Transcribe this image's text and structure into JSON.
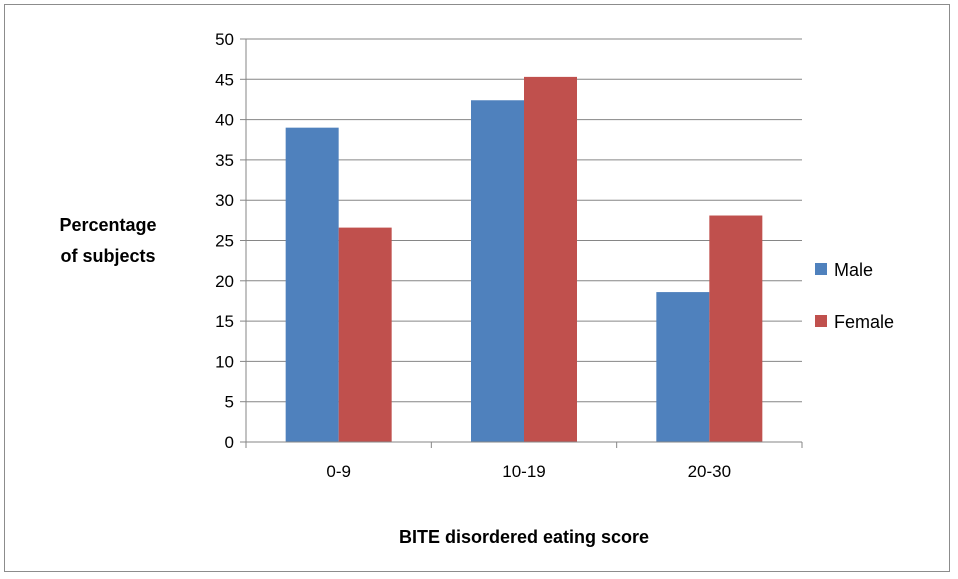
{
  "chart_data": {
    "type": "bar",
    "title": "",
    "xlabel": "BITE disordered eating score",
    "ylabel_lines": [
      "Percentage",
      "of subjects"
    ],
    "categories": [
      "0-9",
      "10-19",
      "20-30"
    ],
    "series": [
      {
        "name": "Male",
        "values": [
          39,
          42.4,
          18.6
        ],
        "color": "#4f81bd"
      },
      {
        "name": "Female",
        "values": [
          26.6,
          45.3,
          28.1
        ],
        "color": "#c0504d"
      }
    ],
    "ylim": [
      0,
      50
    ],
    "yticks": [
      0,
      5,
      10,
      15,
      20,
      25,
      30,
      35,
      40,
      45,
      50
    ],
    "grid": true,
    "legend_position": "right"
  }
}
